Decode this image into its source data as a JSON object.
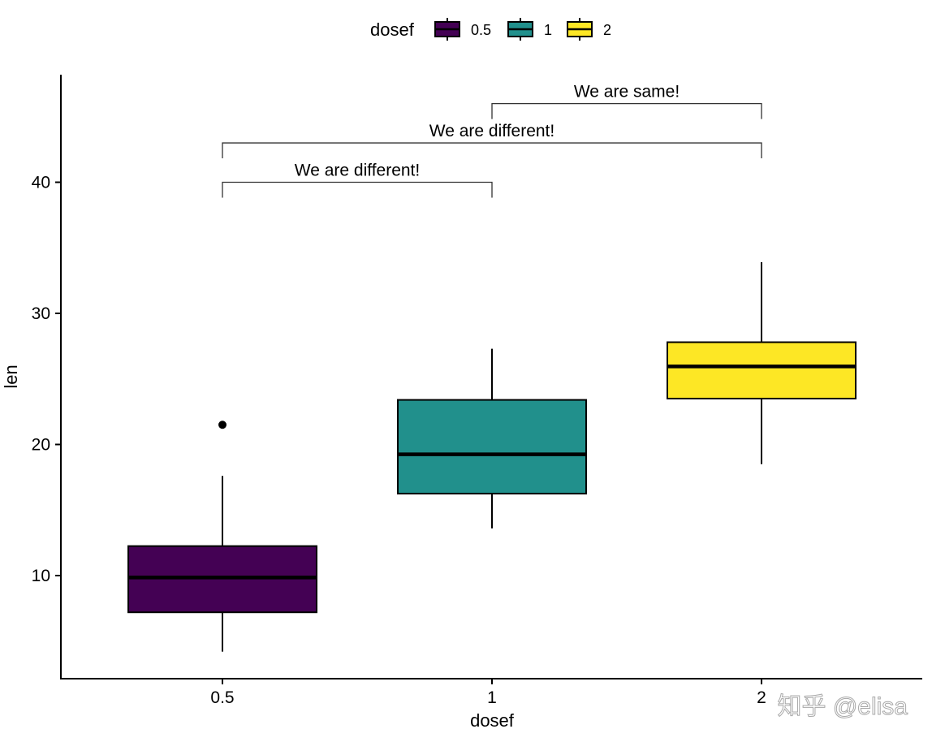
{
  "chart_data": {
    "type": "boxplot",
    "xlabel": "dosef",
    "ylabel": "len",
    "categories": [
      "0.5",
      "1",
      "2"
    ],
    "ylim": [
      2.5,
      48
    ],
    "yticks": [
      10,
      20,
      30,
      40
    ],
    "grid": false,
    "legend": {
      "title": "dosef",
      "position": "top",
      "entries": [
        "0.5",
        "1",
        "2"
      ]
    },
    "series": [
      {
        "name": "0.5",
        "color": "#440154",
        "min": 4.2,
        "q1": 7.2,
        "median": 9.85,
        "q3": 12.25,
        "max": 17.6,
        "outliers": [
          21.5
        ]
      },
      {
        "name": "1",
        "color": "#21908C",
        "min": 13.6,
        "q1": 16.25,
        "median": 19.25,
        "q3": 23.4,
        "max": 27.3,
        "outliers": []
      },
      {
        "name": "2",
        "color": "#FDE725",
        "min": 18.5,
        "q1": 23.5,
        "median": 25.95,
        "q3": 27.8,
        "max": 33.9,
        "outliers": []
      }
    ],
    "annotations": [
      {
        "label": "We are different!",
        "from": "0.5",
        "to": "1",
        "y": 40
      },
      {
        "label": "We are different!",
        "from": "0.5",
        "to": "2",
        "y": 43
      },
      {
        "label": "We are same!",
        "from": "1",
        "to": "2",
        "y": 46
      }
    ]
  },
  "watermark": "知乎 @elisa"
}
